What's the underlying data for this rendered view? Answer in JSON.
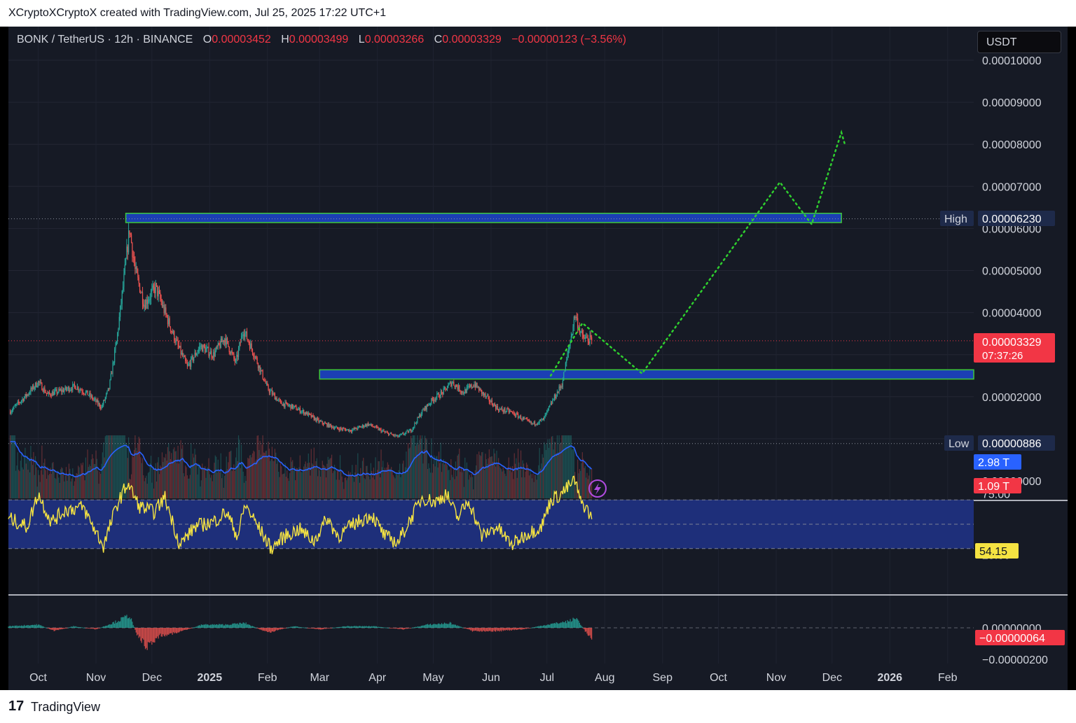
{
  "header": {
    "attribution": "XCryptoXCryptoX created with TradingView.com, Jul 25, 2025 17:22 UTC+1"
  },
  "legend": {
    "symbol": "BONK / TetherUS · 12h · BINANCE",
    "open_label": "O",
    "open": "0.00003452",
    "high_label": "H",
    "high": "0.00003499",
    "low_label": "L",
    "low": "0.00003266",
    "close_label": "C",
    "close": "0.00003329",
    "change": "−0.00000123 (−3.56%)"
  },
  "currency": "USDT",
  "price_axis": {
    "ticks": [
      "0.00010000",
      "0.00009000",
      "0.00008000",
      "0.00007000",
      "0.00006000",
      "0.00005000",
      "0.00004000",
      "0.00002000",
      "0.00001000",
      "0.00000000"
    ],
    "high_label": "High",
    "high_value": "0.00006230",
    "low_label": "Low",
    "low_value": "0.00000886",
    "current_price": "0.00003329",
    "countdown": "07:37:26",
    "volume_ma": "2.98 T",
    "volume": "1.09 T"
  },
  "rsi_axis": {
    "upper": "75.00",
    "lower": "25.00",
    "current": "54.15"
  },
  "macd_axis": {
    "zero": "0.00000000",
    "bottom": "−0.00000200",
    "current": "−0.00000064"
  },
  "time_axis": [
    "Oct",
    "Nov",
    "Dec",
    "2025",
    "Feb",
    "Mar",
    "Apr",
    "May",
    "Jun",
    "Jul",
    "Aug",
    "Sep",
    "Oct",
    "Nov",
    "Dec",
    "2026",
    "Feb"
  ],
  "footer": {
    "logo": "17",
    "brand": "TradingView"
  },
  "colors": {
    "bg": "#161a25",
    "up": "#26a69a",
    "down": "#ef5350",
    "zone_fill": "#1b3fb5",
    "zone_border": "#3ec83e",
    "projection": "#2fd02f",
    "rsi_line": "#f5e342",
    "rsi_band": "#1e2f7a",
    "vol_ma": "#2962ff",
    "price_label": "#f23645"
  },
  "chart_data": [
    {
      "type": "candlestick",
      "title": "BONK / TetherUS · 12h · BINANCE",
      "x_range": [
        "2024-09-15",
        "2026-02-15"
      ],
      "ylim": [
        0,
        0.0001
      ],
      "close_path": [
        [
          "2024-09-16",
          1.65e-05
        ],
        [
          "2024-09-25",
          2.05e-05
        ],
        [
          "2024-10-01",
          2.35e-05
        ],
        [
          "2024-10-06",
          2.05e-05
        ],
        [
          "2024-10-14",
          2.15e-05
        ],
        [
          "2024-10-21",
          2.25e-05
        ],
        [
          "2024-10-28",
          2.05e-05
        ],
        [
          "2024-11-04",
          1.75e-05
        ],
        [
          "2024-11-08",
          2.2e-05
        ],
        [
          "2024-11-12",
          3.3e-05
        ],
        [
          "2024-11-16",
          4.8e-05
        ],
        [
          "2024-11-19",
          6e-05
        ],
        [
          "2024-11-22",
          5e-05
        ],
        [
          "2024-11-27",
          4.2e-05
        ],
        [
          "2024-12-03",
          4.6e-05
        ],
        [
          "2024-12-08",
          4e-05
        ],
        [
          "2024-12-14",
          3.3e-05
        ],
        [
          "2024-12-20",
          2.7e-05
        ],
        [
          "2024-12-27",
          3.2e-05
        ],
        [
          "2025-01-03",
          3e-05
        ],
        [
          "2025-01-09",
          3.4e-05
        ],
        [
          "2025-01-15",
          2.8e-05
        ],
        [
          "2025-01-19",
          3.6e-05
        ],
        [
          "2025-01-25",
          3e-05
        ],
        [
          "2025-02-01",
          2.2e-05
        ],
        [
          "2025-02-08",
          1.85e-05
        ],
        [
          "2025-02-15",
          1.75e-05
        ],
        [
          "2025-02-22",
          1.6e-05
        ],
        [
          "2025-03-01",
          1.4e-05
        ],
        [
          "2025-03-10",
          1.25e-05
        ],
        [
          "2025-03-18",
          1.2e-05
        ],
        [
          "2025-03-27",
          1.35e-05
        ],
        [
          "2025-04-05",
          1.15e-05
        ],
        [
          "2025-04-12",
          1.05e-05
        ],
        [
          "2025-04-19",
          1.2e-05
        ],
        [
          "2025-04-25",
          1.65e-05
        ],
        [
          "2025-05-01",
          1.95e-05
        ],
        [
          "2025-05-06",
          2.1e-05
        ],
        [
          "2025-05-11",
          2.35e-05
        ],
        [
          "2025-05-17",
          2.1e-05
        ],
        [
          "2025-05-23",
          2.3e-05
        ],
        [
          "2025-05-29",
          2e-05
        ],
        [
          "2025-06-05",
          1.7e-05
        ],
        [
          "2025-06-11",
          1.65e-05
        ],
        [
          "2025-06-17",
          1.5e-05
        ],
        [
          "2025-06-23",
          1.35e-05
        ],
        [
          "2025-06-29",
          1.45e-05
        ],
        [
          "2025-07-04",
          1.9e-05
        ],
        [
          "2025-07-09",
          2.3e-05
        ],
        [
          "2025-07-13",
          3.2e-05
        ],
        [
          "2025-07-16",
          3.95e-05
        ],
        [
          "2025-07-20",
          3.4e-05
        ],
        [
          "2025-07-24",
          3.35e-05
        ],
        [
          "2025-07-25",
          3.329e-05
        ]
      ],
      "zones": [
        {
          "from": "2024-11-17",
          "to": "2025-12-06",
          "low": 6.14e-05,
          "high": 6.36e-05
        },
        {
          "from": "2025-03-01",
          "to": "2026-02-18",
          "low": 2.42e-05,
          "high": 2.64e-05
        }
      ],
      "projection": [
        [
          "2025-07-03",
          2.5e-05
        ],
        [
          "2025-07-20",
          3.75e-05
        ],
        [
          "2025-08-21",
          2.55e-05
        ],
        [
          "2025-11-03",
          7.1e-05
        ],
        [
          "2025-11-20",
          6.1e-05
        ],
        [
          "2025-12-06",
          8.28e-05
        ],
        [
          "2025-12-08",
          7.98e-05
        ]
      ],
      "high": 6.23e-05,
      "low": 8.86e-06,
      "last": 3.329e-05
    },
    {
      "type": "line",
      "title": "RSI",
      "ylim": [
        0,
        100
      ],
      "bands": [
        30,
        70
      ],
      "series": [
        {
          "values": [
            [
              "2024-09-15",
              55
            ],
            [
              "2024-09-25",
              48
            ],
            [
              "2024-10-01",
              75
            ],
            [
              "2024-10-08",
              52
            ],
            [
              "2024-10-16",
              62
            ],
            [
              "2024-10-25",
              64
            ],
            [
              "2024-11-05",
              32
            ],
            [
              "2024-11-12",
              65
            ],
            [
              "2024-11-18",
              84
            ],
            [
              "2024-11-24",
              65
            ],
            [
              "2024-12-02",
              60
            ],
            [
              "2024-12-08",
              72
            ],
            [
              "2024-12-16",
              33
            ],
            [
              "2024-12-24",
              48
            ],
            [
              "2025-01-03",
              52
            ],
            [
              "2025-01-10",
              60
            ],
            [
              "2025-01-16",
              40
            ],
            [
              "2025-01-20",
              66
            ],
            [
              "2025-01-27",
              48
            ],
            [
              "2025-02-03",
              30
            ],
            [
              "2025-02-10",
              40
            ],
            [
              "2025-02-18",
              46
            ],
            [
              "2025-02-26",
              36
            ],
            [
              "2025-03-05",
              55
            ],
            [
              "2025-03-11",
              40
            ],
            [
              "2025-03-19",
              50
            ],
            [
              "2025-03-29",
              58
            ],
            [
              "2025-04-05",
              40
            ],
            [
              "2025-04-12",
              35
            ],
            [
              "2025-04-18",
              52
            ],
            [
              "2025-04-25",
              72
            ],
            [
              "2025-05-02",
              68
            ],
            [
              "2025-05-08",
              75
            ],
            [
              "2025-05-14",
              55
            ],
            [
              "2025-05-20",
              70
            ],
            [
              "2025-05-27",
              40
            ],
            [
              "2025-06-04",
              48
            ],
            [
              "2025-06-12",
              33
            ],
            [
              "2025-06-20",
              42
            ],
            [
              "2025-06-28",
              48
            ],
            [
              "2025-07-03",
              70
            ],
            [
              "2025-07-08",
              74
            ],
            [
              "2025-07-12",
              80
            ],
            [
              "2025-07-16",
              86
            ],
            [
              "2025-07-19",
              68
            ],
            [
              "2025-07-22",
              64
            ],
            [
              "2025-07-25",
              54.15
            ]
          ]
        }
      ]
    },
    {
      "type": "bar",
      "title": "MACD histogram",
      "ylim": [
        -2e-06,
        1e-06
      ],
      "series": [
        {
          "values": [
            [
              "2024-09-15",
              1e-07
            ],
            [
              "2024-10-01",
              2e-07
            ],
            [
              "2024-10-10",
              -2e-07
            ],
            [
              "2024-10-20",
              1e-07
            ],
            [
              "2024-11-01",
              -1e-07
            ],
            [
              "2024-11-12",
              4e-07
            ],
            [
              "2024-11-19",
              8e-07
            ],
            [
              "2024-11-23",
              -4e-07
            ],
            [
              "2024-11-28",
              -1.2e-06
            ],
            [
              "2024-12-05",
              -5e-07
            ],
            [
              "2024-12-15",
              -3e-07
            ],
            [
              "2024-12-28",
              2e-07
            ],
            [
              "2025-01-10",
              2e-07
            ],
            [
              "2025-01-20",
              3e-07
            ],
            [
              "2025-02-01",
              -3e-07
            ],
            [
              "2025-02-15",
              1e-07
            ],
            [
              "2025-03-01",
              -1e-07
            ],
            [
              "2025-03-15",
              1e-07
            ],
            [
              "2025-03-30",
              1e-07
            ],
            [
              "2025-04-15",
              -1e-07
            ],
            [
              "2025-04-28",
              2e-07
            ],
            [
              "2025-05-10",
              3e-07
            ],
            [
              "2025-05-22",
              -2e-07
            ],
            [
              "2025-06-05",
              -2e-07
            ],
            [
              "2025-06-18",
              -1e-07
            ],
            [
              "2025-07-01",
              2e-07
            ],
            [
              "2025-07-12",
              4e-07
            ],
            [
              "2025-07-17",
              6e-07
            ],
            [
              "2025-07-22",
              -3e-07
            ],
            [
              "2025-07-25",
              -6.4e-07
            ]
          ]
        }
      ]
    }
  ]
}
